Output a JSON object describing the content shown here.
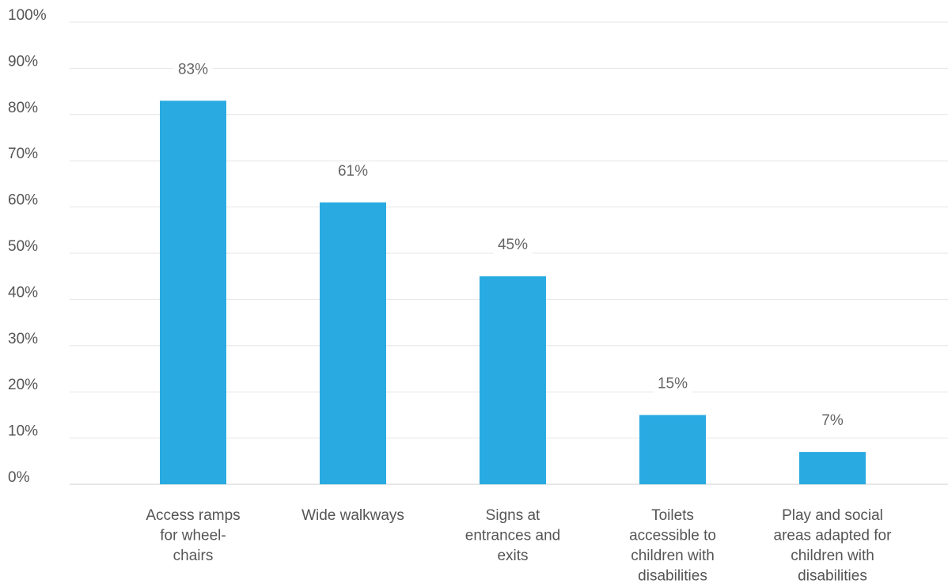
{
  "chart_data": {
    "type": "bar",
    "title": "",
    "xlabel": "",
    "ylabel": "",
    "categories": [
      "Access ramps for wheel-chairs",
      "Wide walkways",
      "Signs at entrances and exits",
      "Toilets accessible to children with disabilities",
      "Play and social areas adapted for children with disabilities"
    ],
    "category_lines": [
      [
        "Access ramps",
        "for wheel-",
        "chairs"
      ],
      [
        "Wide walkways"
      ],
      [
        "Signs at",
        "entrances and",
        "exits"
      ],
      [
        "Toilets",
        "accessible to",
        "children with",
        "disabilities"
      ],
      [
        "Play and social",
        "areas adapted for",
        "children with",
        "disabilities"
      ]
    ],
    "values": [
      83,
      61,
      45,
      15,
      7
    ],
    "value_labels": [
      "83%",
      "61%",
      "45%",
      "15%",
      "7%"
    ],
    "ylim": [
      0,
      100
    ],
    "yticks": [
      0,
      10,
      20,
      30,
      40,
      50,
      60,
      70,
      80,
      90,
      100
    ],
    "ytick_labels": [
      "0%",
      "10%",
      "20%",
      "30%",
      "40%",
      "50%",
      "60%",
      "70%",
      "80%",
      "90%",
      "100%"
    ],
    "grid": true,
    "legend": "none",
    "colors": {
      "bar": "#29abe2",
      "grid": "#e6e6e6",
      "axis": "#cccccc",
      "text": "#555555"
    }
  }
}
